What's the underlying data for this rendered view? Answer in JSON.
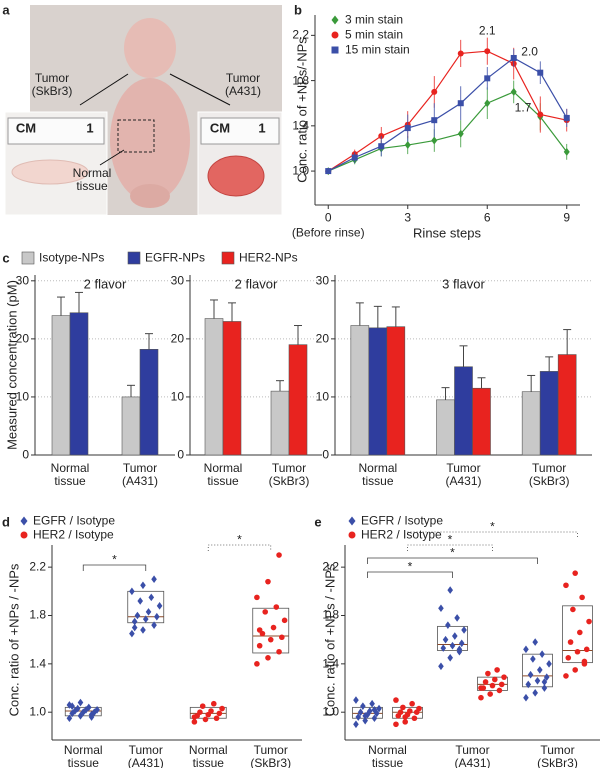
{
  "photo_panel": {
    "panel": "a",
    "labels": [
      "Tumor (SkBr3)",
      "Tumor (A431)",
      "Normal tissue"
    ],
    "ruler_labels": [
      "CM",
      "1",
      "CM",
      "1"
    ]
  },
  "chart_data": [
    {
      "type": "line",
      "panel": "b",
      "ylabel": "Conc. ratio of +NPs/-NPs",
      "xlabel": "Rinse steps",
      "xnote": "(Before rinse)",
      "x": [
        0,
        1,
        2,
        3,
        4,
        5,
        6,
        7,
        8,
        9
      ],
      "xlim": [
        -0.5,
        9.5
      ],
      "xticks": [
        0,
        3,
        6,
        9
      ],
      "ylim": [
        0.7,
        2.38
      ],
      "yticks": [
        {
          "value": 1.0,
          "label": "1.0"
        },
        1.4,
        1.8,
        2.2
      ],
      "annotations": [
        "2.1",
        "2.0",
        "1.7"
      ],
      "series": [
        {
          "name": "3 min stain",
          "color": "#3a9a3a",
          "marker": "diamond",
          "values": [
            1.0,
            1.1,
            1.2,
            1.23,
            1.27,
            1.33,
            1.6,
            1.7,
            1.48,
            1.17
          ],
          "errors": [
            0,
            0.04,
            0.07,
            0.08,
            0.1,
            0.12,
            0.14,
            0.1,
            0.12,
            0.07
          ]
        },
        {
          "name": "5 min stain",
          "color": "#e8231f",
          "marker": "circle",
          "values": [
            1.0,
            1.15,
            1.31,
            1.41,
            1.7,
            2.04,
            2.06,
            1.95,
            1.5,
            1.45
          ],
          "errors": [
            0,
            0.04,
            0.08,
            0.12,
            0.14,
            0.12,
            0.12,
            0.14,
            0.16,
            0.1
          ]
        },
        {
          "name": "15 min stain",
          "color": "#3b4fa8",
          "marker": "square",
          "values": [
            1.0,
            1.12,
            1.22,
            1.38,
            1.45,
            1.6,
            1.82,
            2.0,
            1.87,
            1.47
          ],
          "errors": [
            0,
            0.05,
            0.09,
            0.12,
            0.15,
            0.15,
            0.1,
            0.08,
            0.1,
            0.08
          ]
        }
      ]
    },
    {
      "type": "bar",
      "panel": "c",
      "ylabel": "Measured concentration (pM)",
      "ylim": [
        0,
        31
      ],
      "yticks": [
        0,
        10,
        20,
        30
      ],
      "grid": true,
      "series": [
        {
          "name": "Isotype-NPs",
          "color": "#c8c8c8"
        },
        {
          "name": "EGFR-NPs",
          "color": "#2f3d9e"
        },
        {
          "name": "HER2-NPs",
          "color": "#e8231f"
        }
      ],
      "subplots": [
        {
          "title": "2 flavor",
          "categories": [
            "Normal tissue",
            "Tumor (A431)"
          ],
          "values": [
            [
              24,
              10
            ],
            [
              24.5,
              18.2
            ],
            null
          ],
          "errors": [
            [
              3.2,
              2
            ],
            [
              3.5,
              2.7
            ],
            null
          ]
        },
        {
          "title": "2 flavor",
          "categories": [
            "Normal tissue",
            "Tumor (SkBr3)"
          ],
          "values": [
            [
              23.5,
              11
            ],
            null,
            [
              23,
              19
            ]
          ],
          "errors": [
            [
              3.2,
              1.8
            ],
            null,
            [
              3.2,
              3.3
            ]
          ]
        },
        {
          "title": "3 flavor",
          "categories": [
            "Normal tissue",
            "Tumor (A431)",
            "Tumor (SkBr3)"
          ],
          "values": [
            [
              22.3,
              9.5,
              10.9
            ],
            [
              21.9,
              15.2,
              14.4
            ],
            [
              22.1,
              11.5,
              17.3
            ]
          ],
          "errors": [
            [
              3.9,
              2.1,
              2.8
            ],
            [
              3.7,
              3.6,
              2.5
            ],
            [
              3.4,
              1.8,
              4.3
            ]
          ]
        }
      ]
    },
    {
      "type": "box",
      "panel": "d",
      "ylabel": "Conc. ratio of +NPs / -NPs",
      "ylim": [
        0.77,
        2.59
      ],
      "yticks": [
        {
          "value": 1.0,
          "label": "1.0"
        },
        1.4,
        1.8,
        2.2
      ],
      "categories": [
        "Normal tissue",
        "Tumor (A431)",
        "Normal tissue",
        "Tumor (SkBr3)"
      ],
      "significance": [
        "*",
        "*"
      ],
      "series": [
        {
          "name": "EGFR / Isotype",
          "color": "#3b4fa8",
          "marker": "diamond",
          "boxes": [
            {
              "q1": 0.97,
              "median": 1.01,
              "q3": 1.04,
              "points": [
                0.95,
                0.97,
                0.98,
                0.99,
                1.0,
                1.0,
                1.01,
                1.02,
                1.02,
                1.03,
                1.04,
                1.06,
                1.08,
                0.96,
                1.05
              ]
            },
            {
              "q1": 1.74,
              "median": 1.79,
              "q3": 2.0,
              "points": [
                1.65,
                1.68,
                1.72,
                1.75,
                1.77,
                1.79,
                1.8,
                1.83,
                1.88,
                1.92,
                1.95,
                2.0,
                2.05,
                2.1,
                1.7
              ]
            },
            null,
            null
          ]
        },
        {
          "name": "HER2 / Isotype",
          "color": "#e8231f",
          "marker": "circle",
          "boxes": [
            null,
            null,
            {
              "q1": 0.95,
              "median": 0.99,
              "q3": 1.04,
              "points": [
                0.92,
                0.94,
                0.95,
                0.97,
                0.98,
                0.99,
                1.0,
                1.01,
                1.03,
                1.05,
                1.07,
                0.96
              ]
            },
            {
              "q1": 1.49,
              "median": 1.63,
              "q3": 1.86,
              "points": [
                1.4,
                1.45,
                1.5,
                1.55,
                1.6,
                1.62,
                1.65,
                1.7,
                1.76,
                1.83,
                1.87,
                1.95,
                2.08,
                2.3,
                1.68
              ]
            }
          ]
        }
      ]
    },
    {
      "type": "box",
      "panel": "e",
      "ylabel": "Conc. ratio of +NPs / -NPs",
      "ylim": [
        0.77,
        2.59
      ],
      "yticks": [
        {
          "value": 1.0,
          "label": "1.0"
        },
        1.4,
        1.8,
        2.2
      ],
      "categories": [
        "Normal tissue",
        "Tumor (A431)",
        "Tumor (SkBr3)"
      ],
      "significance": [
        "*",
        "*",
        "*",
        "*"
      ],
      "series": [
        {
          "name": "EGFR / Isotype",
          "color": "#3b4fa8",
          "marker": "diamond",
          "boxes": [
            {
              "q1": 0.95,
              "median": 0.99,
              "q3": 1.04,
              "points": [
                0.9,
                0.93,
                0.95,
                0.96,
                0.98,
                0.99,
                1.0,
                1.01,
                1.03,
                1.05,
                1.07,
                1.1,
                0.97,
                1.02
              ]
            },
            {
              "q1": 1.51,
              "median": 1.56,
              "q3": 1.71,
              "points": [
                1.38,
                1.45,
                1.5,
                1.53,
                1.55,
                1.57,
                1.6,
                1.63,
                1.68,
                1.72,
                1.78,
                1.86,
                2.01,
                1.52
              ]
            },
            {
              "q1": 1.21,
              "median": 1.3,
              "q3": 1.48,
              "points": [
                1.12,
                1.16,
                1.2,
                1.23,
                1.26,
                1.29,
                1.31,
                1.35,
                1.4,
                1.44,
                1.48,
                1.52,
                1.58,
                1.25
              ]
            }
          ]
        },
        {
          "name": "HER2 / Isotype",
          "color": "#e8231f",
          "marker": "circle",
          "boxes": [
            {
              "q1": 0.95,
              "median": 1.0,
              "q3": 1.04,
              "points": [
                0.9,
                0.92,
                0.95,
                0.97,
                0.98,
                1.0,
                1.0,
                1.01,
                1.03,
                1.04,
                1.07,
                1.1,
                0.96
              ]
            },
            {
              "q1": 1.18,
              "median": 1.23,
              "q3": 1.29,
              "points": [
                1.12,
                1.15,
                1.18,
                1.2,
                1.22,
                1.23,
                1.25,
                1.27,
                1.29,
                1.32,
                1.35,
                1.2
              ]
            },
            {
              "q1": 1.41,
              "median": 1.51,
              "q3": 1.88,
              "points": [
                1.3,
                1.35,
                1.4,
                1.45,
                1.5,
                1.52,
                1.58,
                1.66,
                1.75,
                1.85,
                1.95,
                2.05,
                2.15,
                1.42
              ]
            }
          ]
        }
      ]
    }
  ]
}
